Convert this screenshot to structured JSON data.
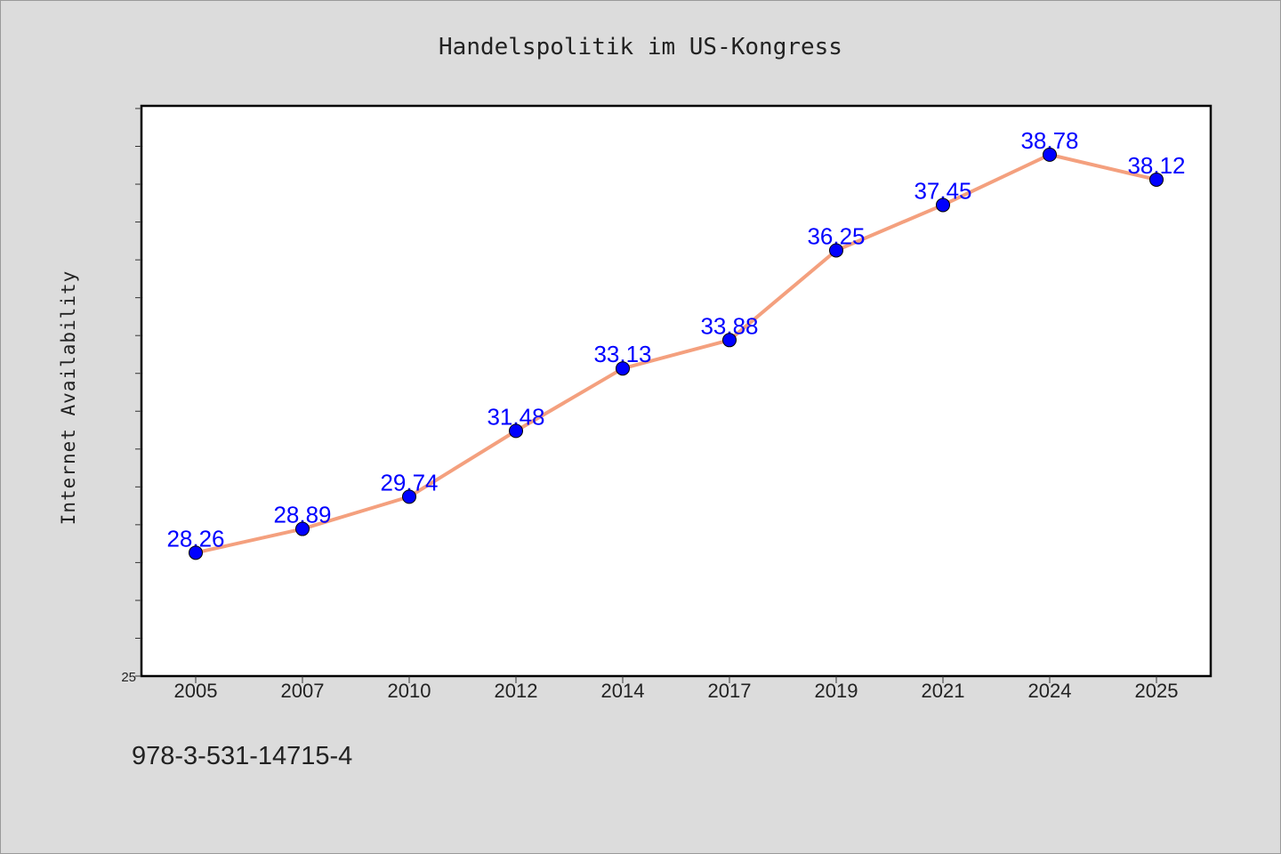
{
  "chart_data": {
    "type": "line",
    "title": "Handelspolitik im US-Kongress",
    "xlabel": "",
    "ylabel": "Internet Availability",
    "categories": [
      "2005",
      "2007",
      "2010",
      "2012",
      "2014",
      "2017",
      "2019",
      "2021",
      "2024",
      "2025"
    ],
    "values": [
      28.26,
      28.89,
      29.74,
      31.48,
      33.13,
      33.88,
      36.25,
      37.45,
      38.78,
      38.12
    ],
    "data_labels": [
      "28.26",
      "28.89",
      "29.74",
      "31.48",
      "33.13",
      "33.88",
      "36.25",
      "37.45",
      "38.78",
      "38.12"
    ],
    "ylim": [
      25,
      40.07
    ],
    "y_tick_labels": [
      "25"
    ],
    "grid": false,
    "line_color": "#f4a07e",
    "marker_color": "#0000ff",
    "label_color": "#0000ff",
    "background_color": "#dcdcdc",
    "plot_background_color": "#ffffff"
  },
  "footer": {
    "code": "978-3-531-14715-4"
  }
}
